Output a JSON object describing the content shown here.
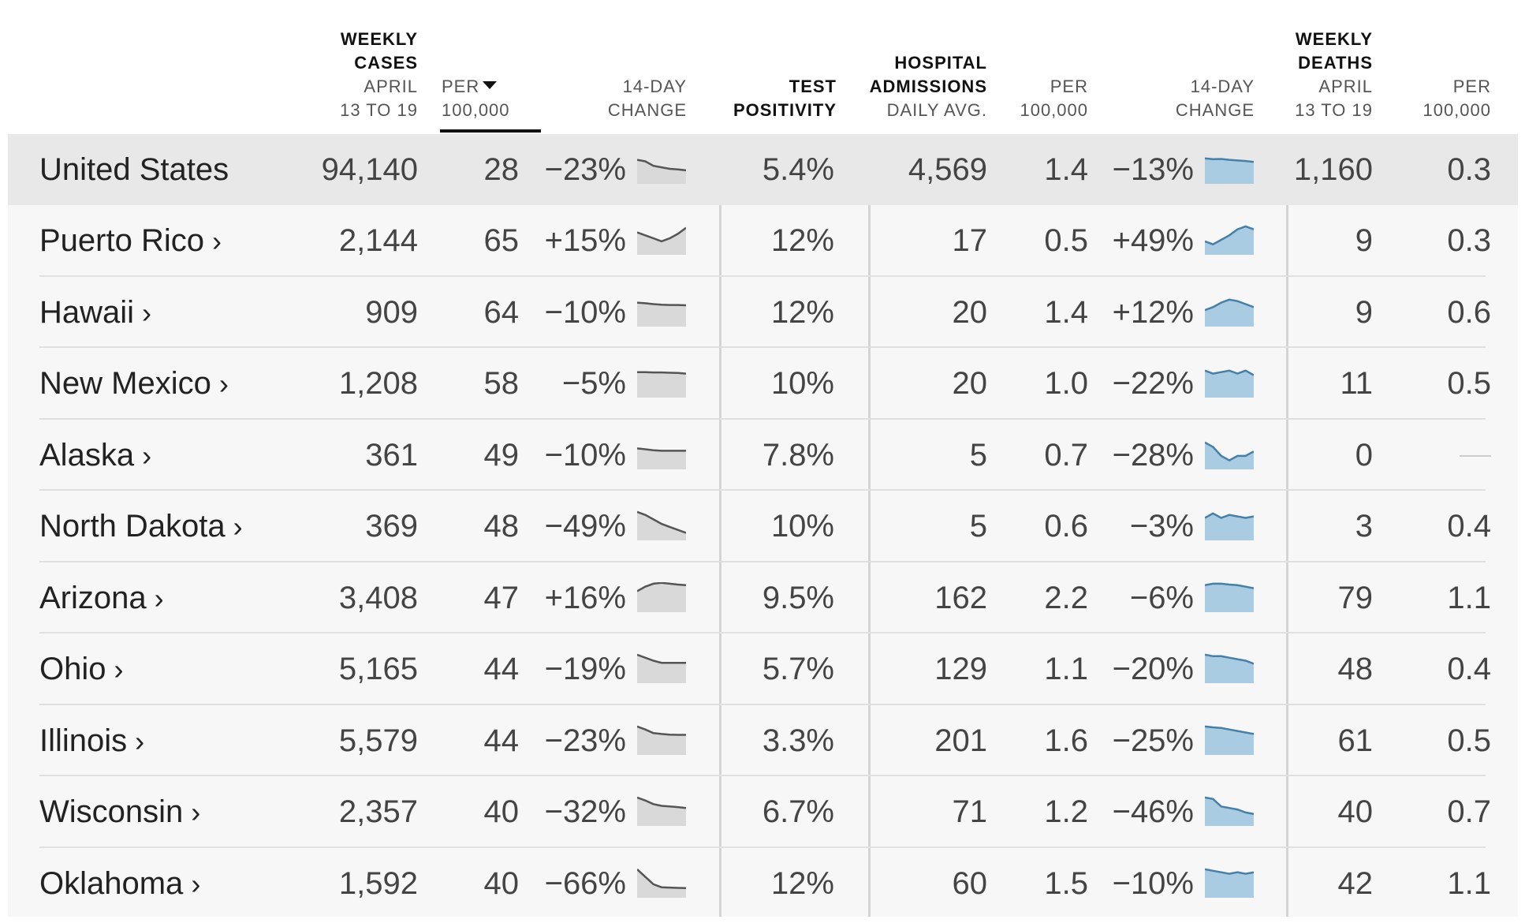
{
  "header": {
    "weekly_cases": {
      "title1": "WEEKLY",
      "title2": "CASES",
      "sub1": "APRIL",
      "sub2": "13 TO 19"
    },
    "per100k_cases": {
      "line1": "PER",
      "line2": "100,000",
      "sorted": true
    },
    "change14_cases": {
      "line1": "14-DAY",
      "line2": "CHANGE"
    },
    "test_positivity": {
      "line1": "TEST",
      "line2": "POSITIVITY"
    },
    "hospital": {
      "title1": "HOSPITAL",
      "title2": "ADMISSIONS",
      "sub": "DAILY AVG."
    },
    "per100k_hosp": {
      "line1": "PER",
      "line2": "100,000"
    },
    "change14_hosp": {
      "line1": "14-DAY",
      "line2": "CHANGE"
    },
    "weekly_deaths": {
      "title1": "WEEKLY",
      "title2": "DEATHS",
      "sub1": "APRIL",
      "sub2": "13 TO 19"
    },
    "per100k_deaths": {
      "line1": "PER",
      "line2": "100,000"
    }
  },
  "colors": {
    "case_spark_fill": "#d9d9d9",
    "case_spark_line": "#555555",
    "hosp_spark_fill": "#a9cce3",
    "hosp_spark_line": "#4a7fa5"
  },
  "rows": [
    {
      "name": "United States",
      "link": false,
      "cases": "94,140",
      "cases_per100k": "28",
      "cases_change": "−23%",
      "cases_trend": [
        0.2,
        0.25,
        0.4,
        0.45,
        0.5,
        0.52,
        0.55
      ],
      "positivity": "5.4%",
      "hosp": "4,569",
      "hosp_per100k": "1.4",
      "hosp_change": "−13%",
      "hosp_trend": [
        0.15,
        0.18,
        0.17,
        0.2,
        0.22,
        0.24,
        0.27
      ],
      "deaths": "1,160",
      "deaths_per100k": "0.3"
    },
    {
      "name": "Puerto Rico",
      "link": true,
      "cases": "2,144",
      "cases_per100k": "65",
      "cases_change": "+15%",
      "cases_trend": [
        0.25,
        0.35,
        0.45,
        0.55,
        0.45,
        0.3,
        0.1
      ],
      "positivity": "12%",
      "hosp": "17",
      "hosp_per100k": "0.5",
      "hosp_change": "+49%",
      "hosp_trend": [
        0.55,
        0.65,
        0.5,
        0.35,
        0.15,
        0.05,
        0.15
      ],
      "deaths": "9",
      "deaths_per100k": "0.3"
    },
    {
      "name": "Hawaii",
      "link": true,
      "cases": "909",
      "cases_per100k": "64",
      "cases_change": "−10%",
      "cases_trend": [
        0.2,
        0.22,
        0.25,
        0.27,
        0.28,
        0.28,
        0.29
      ],
      "positivity": "12%",
      "hosp": "20",
      "hosp_per100k": "1.4",
      "hosp_change": "+12%",
      "hosp_trend": [
        0.45,
        0.35,
        0.2,
        0.1,
        0.15,
        0.25,
        0.35
      ],
      "deaths": "9",
      "deaths_per100k": "0.6"
    },
    {
      "name": "New Mexico",
      "link": true,
      "cases": "1,208",
      "cases_per100k": "58",
      "cases_change": "−5%",
      "cases_trend": [
        0.15,
        0.15,
        0.16,
        0.16,
        0.17,
        0.18,
        0.2
      ],
      "positivity": "10%",
      "hosp": "20",
      "hosp_per100k": "1.0",
      "hosp_change": "−22%",
      "hosp_trend": [
        0.1,
        0.2,
        0.15,
        0.1,
        0.2,
        0.1,
        0.25
      ],
      "deaths": "11",
      "deaths_per100k": "0.5"
    },
    {
      "name": "Alaska",
      "link": true,
      "cases": "361",
      "cases_per100k": "49",
      "cases_change": "−10%",
      "cases_trend": [
        0.3,
        0.33,
        0.36,
        0.38,
        0.38,
        0.38,
        0.38
      ],
      "positivity": "7.8%",
      "hosp": "5",
      "hosp_per100k": "0.7",
      "hosp_change": "−28%",
      "hosp_trend": [
        0.1,
        0.25,
        0.55,
        0.7,
        0.55,
        0.55,
        0.4
      ],
      "deaths": "0",
      "deaths_per100k": ""
    },
    {
      "name": "North Dakota",
      "link": true,
      "cases": "369",
      "cases_per100k": "48",
      "cases_change": "−49%",
      "cases_trend": [
        0.05,
        0.15,
        0.3,
        0.45,
        0.55,
        0.65,
        0.75
      ],
      "positivity": "10%",
      "hosp": "5",
      "hosp_per100k": "0.6",
      "hosp_change": "−3%",
      "hosp_trend": [
        0.25,
        0.1,
        0.25,
        0.15,
        0.2,
        0.25,
        0.2
      ],
      "deaths": "3",
      "deaths_per100k": "0.4"
    },
    {
      "name": "Arizona",
      "link": true,
      "cases": "3,408",
      "cases_per100k": "47",
      "cases_change": "+16%",
      "cases_trend": [
        0.3,
        0.15,
        0.05,
        0.02,
        0.05,
        0.08,
        0.1
      ],
      "positivity": "9.5%",
      "hosp": "162",
      "hosp_per100k": "2.2",
      "hosp_change": "−6%",
      "hosp_trend": [
        0.1,
        0.05,
        0.05,
        0.08,
        0.1,
        0.15,
        0.2
      ],
      "deaths": "79",
      "deaths_per100k": "1.1"
    },
    {
      "name": "Ohio",
      "link": true,
      "cases": "5,165",
      "cases_per100k": "44",
      "cases_change": "−19%",
      "cases_trend": [
        0.05,
        0.15,
        0.25,
        0.32,
        0.32,
        0.32,
        0.32
      ],
      "positivity": "5.7%",
      "hosp": "129",
      "hosp_per100k": "1.1",
      "hosp_change": "−20%",
      "hosp_trend": [
        0.05,
        0.1,
        0.1,
        0.15,
        0.2,
        0.25,
        0.35
      ],
      "deaths": "48",
      "deaths_per100k": "0.4"
    },
    {
      "name": "Illinois",
      "link": true,
      "cases": "5,579",
      "cases_per100k": "44",
      "cases_change": "−23%",
      "cases_trend": [
        0.05,
        0.15,
        0.27,
        0.3,
        0.32,
        0.33,
        0.33
      ],
      "positivity": "3.3%",
      "hosp": "201",
      "hosp_per100k": "1.6",
      "hosp_change": "−25%",
      "hosp_trend": [
        0.05,
        0.08,
        0.1,
        0.15,
        0.2,
        0.25,
        0.3
      ],
      "deaths": "61",
      "deaths_per100k": "0.5"
    },
    {
      "name": "Wisconsin",
      "link": true,
      "cases": "2,357",
      "cases_per100k": "40",
      "cases_change": "−32%",
      "cases_trend": [
        0.05,
        0.15,
        0.27,
        0.33,
        0.35,
        0.37,
        0.4
      ],
      "positivity": "6.7%",
      "hosp": "71",
      "hosp_per100k": "1.2",
      "hosp_change": "−46%",
      "hosp_trend": [
        0.05,
        0.1,
        0.35,
        0.4,
        0.45,
        0.55,
        0.6
      ],
      "deaths": "40",
      "deaths_per100k": "0.7"
    },
    {
      "name": "Oklahoma",
      "link": true,
      "cases": "1,592",
      "cases_per100k": "40",
      "cases_change": "−66%",
      "cases_trend": [
        0.05,
        0.3,
        0.55,
        0.65,
        0.66,
        0.67,
        0.68
      ],
      "positivity": "12%",
      "hosp": "60",
      "hosp_per100k": "1.5",
      "hosp_change": "−10%",
      "hosp_trend": [
        0.05,
        0.1,
        0.15,
        0.2,
        0.15,
        0.2,
        0.15
      ],
      "deaths": "42",
      "deaths_per100k": "1.1"
    }
  ]
}
